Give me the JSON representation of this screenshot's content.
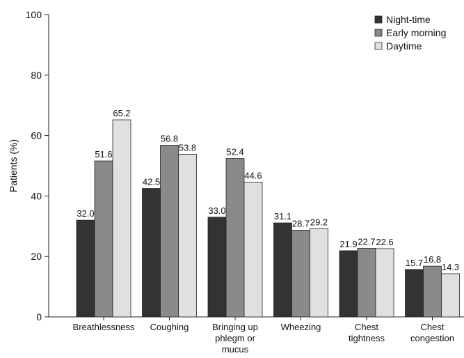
{
  "chart_data": {
    "type": "bar",
    "title": "",
    "xlabel": "",
    "ylabel": "Patients (%)",
    "ylim": [
      0,
      100
    ],
    "yticks": [
      0,
      20,
      40,
      60,
      80,
      100
    ],
    "grid": false,
    "legend_position": "top-right",
    "categories": [
      [
        "Breathlessness"
      ],
      [
        "Coughing"
      ],
      [
        "Bringing up",
        "phlegm or",
        "mucus"
      ],
      [
        "Wheezing"
      ],
      [
        "Chest",
        "tightness"
      ],
      [
        "Chest",
        "congestion"
      ]
    ],
    "series": [
      {
        "name": "Night-time",
        "color": "#333333",
        "values": [
          32.0,
          42.5,
          33.0,
          31.1,
          21.9,
          15.7
        ],
        "labels": [
          "32.0",
          "42.5",
          "33.0",
          "31.1",
          "21.9",
          "15.7"
        ]
      },
      {
        "name": "Early morning",
        "color": "#8a8a8a",
        "values": [
          51.6,
          56.8,
          52.4,
          28.7,
          22.7,
          16.8
        ],
        "labels": [
          "51.6",
          "56.8",
          "52.4",
          "28.7",
          "22.7",
          "16.8"
        ]
      },
      {
        "name": "Daytime",
        "color": "#e0e0e0",
        "values": [
          65.2,
          53.8,
          44.6,
          29.2,
          22.6,
          14.3
        ],
        "labels": [
          "65.2",
          "53.8",
          "44.6",
          "29.2",
          "22.6",
          "14.3"
        ]
      }
    ]
  }
}
